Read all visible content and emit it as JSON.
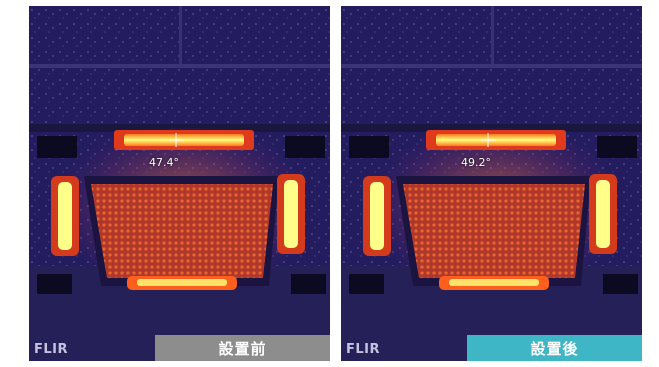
{
  "panels": [
    {
      "brand": "FLIR",
      "temperature": "47.4°",
      "label": "設置前"
    },
    {
      "brand": "FLIR",
      "temperature": "49.2°",
      "label": "設置後"
    }
  ],
  "colors": {
    "before_label_bg": "#8d8d8d",
    "after_label_bg": "#3fb6c6"
  }
}
